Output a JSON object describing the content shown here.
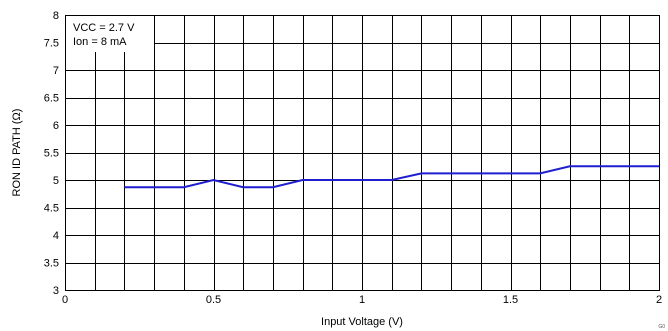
{
  "chart_data": {
    "type": "line",
    "title": "",
    "xlabel": "Input Voltage (V)",
    "ylabel": "RON ID PATH (Ω)",
    "xlim": [
      0,
      2
    ],
    "ylim": [
      3,
      8
    ],
    "xticks": [
      0,
      0.5,
      1,
      1.5,
      2
    ],
    "xtick_labels": [
      "0",
      "0.5",
      "1",
      "1.5",
      "2"
    ],
    "yticks": [
      3,
      3.5,
      4,
      4.5,
      5,
      5.5,
      6,
      6.5,
      7,
      7.5,
      8
    ],
    "ytick_labels": [
      "3",
      "3.5",
      "4",
      "4.5",
      "5",
      "5.5",
      "6",
      "6.5",
      "7",
      "7.5",
      "8"
    ],
    "x_grid_step": 0.1,
    "grid": true,
    "conditions": [
      "VCC = 2.7 V",
      "Ion = 8 mA"
    ],
    "series": [
      {
        "color": "#1f1fd0",
        "x": [
          0.2,
          0.4,
          0.5,
          0.6,
          0.7,
          0.8,
          1.1,
          1.2,
          1.6,
          1.7,
          2.0
        ],
        "y": [
          4.87,
          4.87,
          5.0,
          4.87,
          4.87,
          5.0,
          5.0,
          5.12,
          5.12,
          5.25,
          5.25
        ]
      }
    ],
    "corner_note": "G0"
  }
}
